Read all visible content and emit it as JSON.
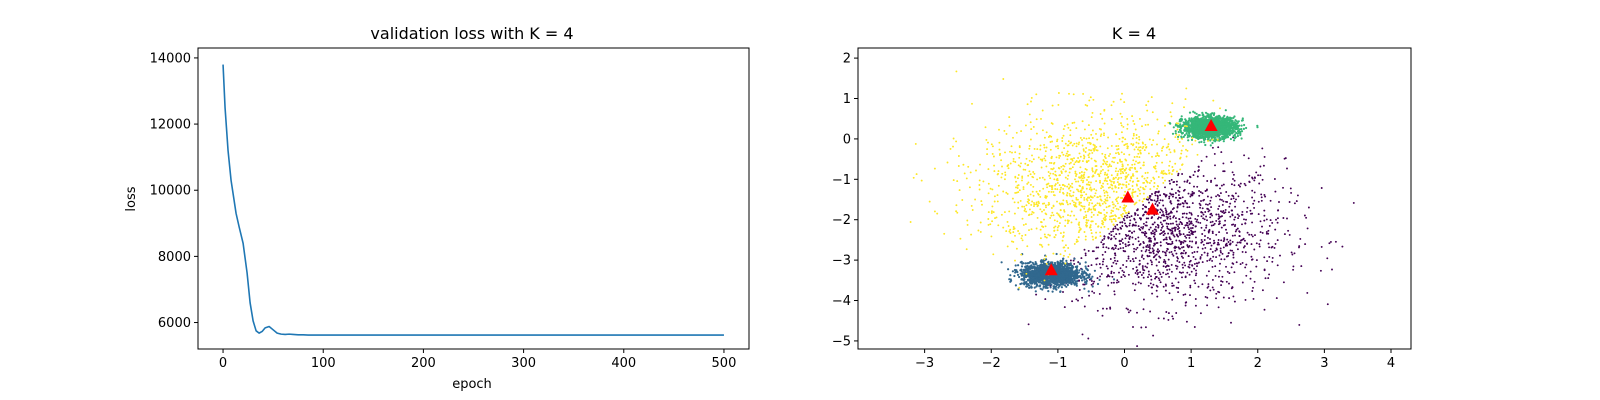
{
  "chart_data": [
    {
      "type": "line",
      "title": "validation loss with K = 4",
      "xlabel": "epoch",
      "ylabel": "loss",
      "xlim": [
        -25,
        525
      ],
      "ylim": [
        5200,
        14300
      ],
      "xticks": [
        0,
        100,
        200,
        300,
        400,
        500
      ],
      "yticks": [
        6000,
        8000,
        10000,
        12000,
        14000
      ],
      "grid": false,
      "color": "#1f77b4",
      "series": [
        {
          "x": [
            0,
            2,
            5,
            8,
            10,
            13,
            16,
            20,
            24,
            27,
            30,
            33,
            36,
            39,
            42,
            46,
            50,
            54,
            58,
            62,
            66,
            70,
            75,
            80,
            85,
            90,
            95,
            100,
            150,
            200,
            250,
            300,
            350,
            400,
            450,
            500
          ],
          "y": [
            13800,
            12500,
            11200,
            10300,
            9900,
            9300,
            8900,
            8400,
            7500,
            6600,
            6050,
            5750,
            5680,
            5730,
            5840,
            5880,
            5780,
            5680,
            5650,
            5640,
            5650,
            5640,
            5630,
            5630,
            5620,
            5620,
            5620,
            5620,
            5620,
            5620,
            5620,
            5620,
            5620,
            5620,
            5620,
            5620
          ]
        }
      ]
    },
    {
      "type": "scatter",
      "title": "K = 4",
      "xlabel": "",
      "ylabel": "",
      "xlim": [
        -4.0,
        4.3
      ],
      "ylim": [
        -5.2,
        2.25
      ],
      "xticks": [
        -3,
        -2,
        -1,
        0,
        1,
        2,
        3,
        4
      ],
      "yticks": [
        -5,
        -4,
        -3,
        -2,
        -1,
        0,
        1,
        2
      ],
      "grid": false,
      "clusters": [
        {
          "color": "#440154",
          "shape": "diffuse",
          "center": [
            0.6,
            -2.3
          ],
          "spread": [
            0.9,
            0.9
          ],
          "n": 1300
        },
        {
          "color": "#31688e",
          "shape": "dense",
          "center": [
            -1.1,
            -3.35
          ],
          "spread": [
            0.22,
            0.14
          ],
          "n": 1700
        },
        {
          "color": "#35b779",
          "shape": "dense",
          "center": [
            1.28,
            0.28
          ],
          "spread": [
            0.2,
            0.13
          ],
          "n": 1700
        },
        {
          "color": "#fde725",
          "shape": "diffuse",
          "center": [
            -0.4,
            -1.2
          ],
          "spread": [
            0.9,
            0.9
          ],
          "n": 1300
        }
      ],
      "centroids": {
        "color": "#ff0000",
        "marker": "triangle",
        "points": [
          [
            0.05,
            -1.45
          ],
          [
            0.42,
            -1.75
          ],
          [
            -1.1,
            -3.25
          ],
          [
            1.3,
            0.32
          ]
        ]
      }
    }
  ]
}
